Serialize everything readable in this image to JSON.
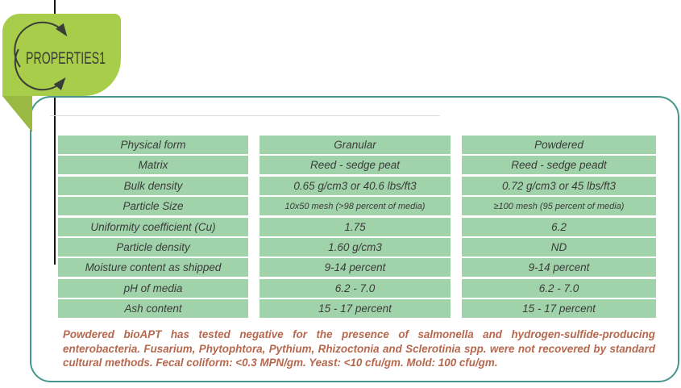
{
  "logo": {
    "label": "PROPERTIES1",
    "leaf_color": "#a7cd4a",
    "fold_color": "#99b943",
    "text_color": "#3a3e39",
    "icon": "cycle-arrows-icon"
  },
  "panel": {
    "border_color": "#46978b"
  },
  "table": {
    "cell_color": "#a1d3aa",
    "text_color": "#3b3b3b",
    "rows": [
      [
        "Physical form",
        "Granular",
        "Powdered"
      ],
      [
        "Matrix",
        "Reed - sedge peat",
        "Reed - sedge peadt"
      ],
      [
        "Bulk density",
        "0.65 g/cm3 or 40.6 lbs/ft3",
        "0.72 g/cm3 or 45 lbs/ft3"
      ],
      [
        "Particle Size",
        "10x50 mesh (>98 percent of media)",
        "≥100 mesh (95 percent of media)"
      ],
      [
        "Uniformity coefficient (Cu)",
        "1.75",
        "6.2"
      ],
      [
        "Particle density",
        "1.60 g/cm3",
        "ND"
      ],
      [
        "Moisture content as shipped",
        "9-14 percent",
        "9-14 percent"
      ],
      [
        "pH of media",
        "6.2 - 7.0",
        "6.2 - 7.0"
      ],
      [
        "Ash content",
        "15 - 17 percent",
        "15 - 17 percent"
      ]
    ]
  },
  "footnote": {
    "text": "Powdered bioAPT has tested negative for the presence of salmonella and hydrogen-sulfide-producing enterobacteria. Fusarium, Phytophtora, Pythium, Rhizoctonia and Sclerotinia spp. were not recovered by standard cultural methods. Fecal coliform: <0.3 MPN/gm. Yeast: <10 cfu/gm. Mold: 100 cfu/gm.",
    "color": "#b5684e"
  }
}
